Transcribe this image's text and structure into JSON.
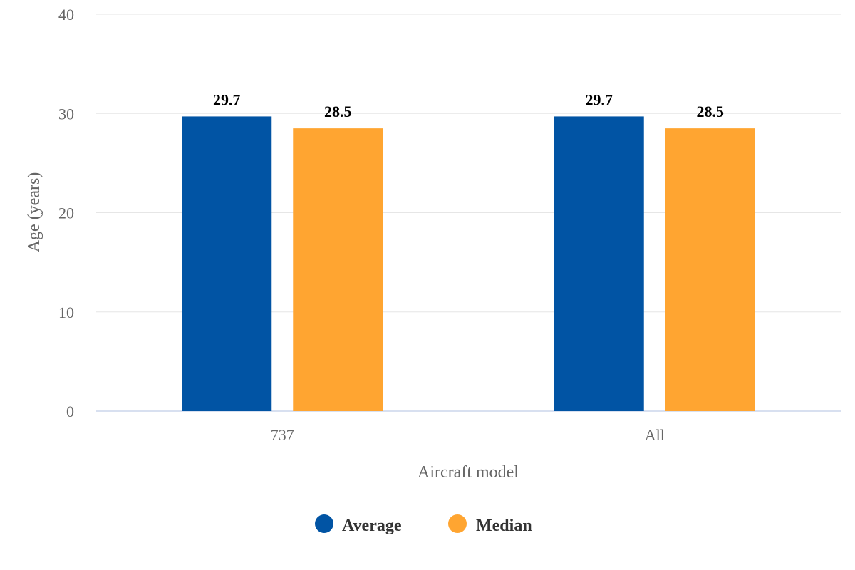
{
  "chart_data": {
    "type": "bar",
    "categories": [
      "737",
      "All"
    ],
    "series": [
      {
        "name": "Average",
        "values": [
          29.7,
          29.7
        ],
        "color": "#0154a4"
      },
      {
        "name": "Median",
        "values": [
          28.5,
          28.5
        ],
        "color": "#ffa531"
      }
    ],
    "xlabel": "Aircraft model",
    "ylabel": "Age (years)",
    "ylim": [
      0,
      40
    ],
    "yticks": [
      0,
      10,
      20,
      30,
      40
    ],
    "grid": true,
    "legend_position": "bottom-center",
    "data_labels": true
  }
}
